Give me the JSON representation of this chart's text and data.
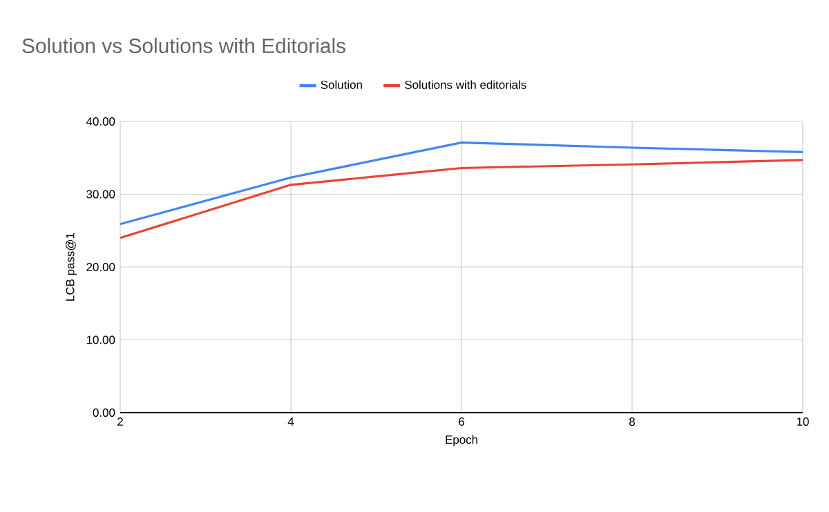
{
  "chart_data": {
    "type": "line",
    "title": "Solution vs Solutions with Editorials",
    "xlabel": "Epoch",
    "ylabel": "LCB pass@1",
    "x": [
      2,
      4,
      6,
      8,
      10
    ],
    "series": [
      {
        "name": "Solution",
        "color": "#4285f4",
        "values": [
          25.9,
          32.3,
          37.1,
          36.4,
          35.8
        ]
      },
      {
        "name": "Solutions with editorials",
        "color": "#ea4335",
        "values": [
          24.0,
          31.3,
          33.6,
          34.1,
          34.7
        ]
      }
    ],
    "xlim": [
      2,
      10
    ],
    "xticks": [
      2,
      4,
      6,
      8,
      10
    ],
    "ylim": [
      0,
      40
    ],
    "yticks": [
      {
        "value": 0,
        "label": "0.00"
      },
      {
        "value": 10,
        "label": "10.00"
      },
      {
        "value": 20,
        "label": "20.00"
      },
      {
        "value": 30,
        "label": "30.00"
      },
      {
        "value": 40,
        "label": "40.00"
      }
    ],
    "grid": true,
    "legend": "top",
    "marker": "none",
    "line_style": "solid"
  }
}
